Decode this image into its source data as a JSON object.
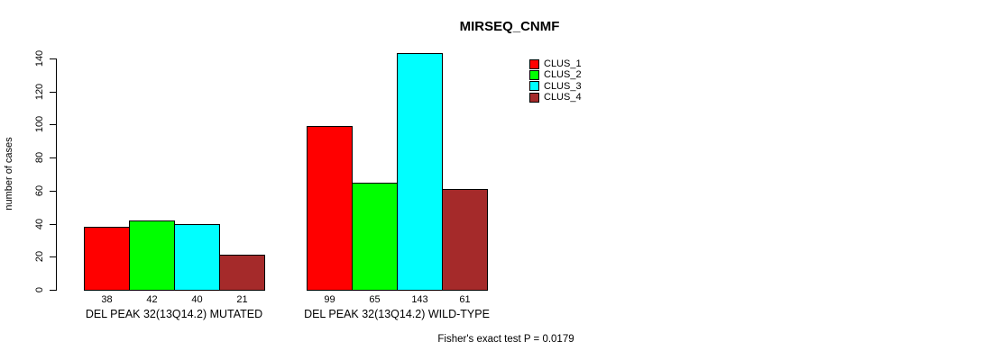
{
  "chart_data": {
    "type": "bar",
    "title": "MIRSEQ_CNMF",
    "xlabel": "",
    "ylabel": "number of cases",
    "ylim": [
      0,
      140
    ],
    "yticks": [
      0,
      20,
      40,
      60,
      80,
      100,
      120,
      140
    ],
    "grid": false,
    "legend_position": "top-right",
    "categories": [
      "DEL PEAK 32(13Q14.2) MUTATED",
      "DEL PEAK 32(13Q14.2) WILD-TYPE"
    ],
    "series": [
      {
        "name": "CLUS_1",
        "color": "#FF0000",
        "values": [
          38,
          99
        ]
      },
      {
        "name": "CLUS_2",
        "color": "#00FF00",
        "values": [
          42,
          65
        ]
      },
      {
        "name": "CLUS_3",
        "color": "#00FFFF",
        "values": [
          40,
          143
        ]
      },
      {
        "name": "CLUS_4",
        "color": "#A52A2A",
        "values": [
          21,
          61
        ]
      }
    ],
    "bar_value_labels": [
      [
        38,
        42,
        40,
        21
      ],
      [
        99,
        65,
        143,
        61
      ]
    ],
    "annotation": "Fisher's exact test P = 0.0179",
    "bar_border_color": "#000000",
    "text_color": "#000000",
    "background_color": "#FFFFFF"
  }
}
